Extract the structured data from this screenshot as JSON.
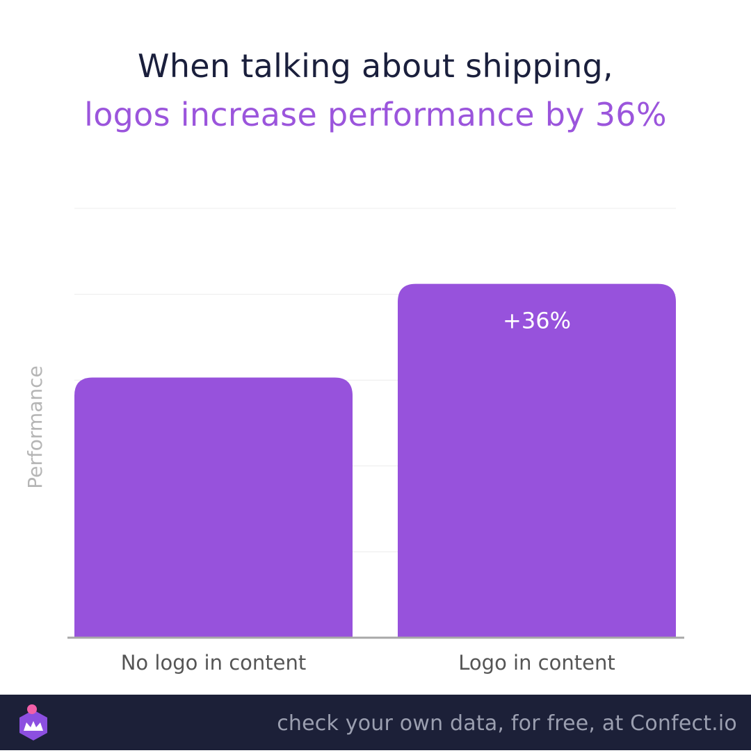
{
  "title": {
    "line1": "When talking about shipping,",
    "line2": "logos increase performance by 36%"
  },
  "colors": {
    "title_dark": "#1a1f3c",
    "accent": "#9b55dc",
    "bar": "#9752dc",
    "footer_bg": "#1c2038",
    "footer_text": "#9b9fb0",
    "axis_label": "#b5b5b5",
    "tick_label": "#555555"
  },
  "chart_data": {
    "type": "bar",
    "categories": [
      "No logo in content",
      "Logo in content"
    ],
    "values": [
      100,
      136
    ],
    "data_labels": [
      "",
      "+36%"
    ],
    "ylabel": "Performance",
    "xlabel": "",
    "ylim": [
      0,
      165
    ],
    "grid": true,
    "legend": "none"
  },
  "footer": {
    "logo_icon": "confect-crown-logo-icon",
    "text": "check your own data, for free, at Confect.io"
  }
}
